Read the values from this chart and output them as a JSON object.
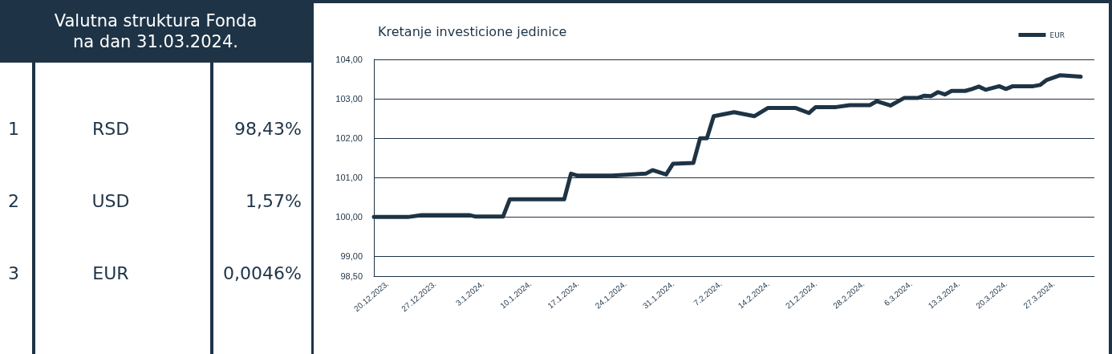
{
  "chart_data": [
    {
      "type": "other",
      "title": "Valutna struktura Fonda na dan 31.03.2024.",
      "categories": [
        "RSD",
        "USD",
        "EUR"
      ],
      "value_labels": [
        "98,43%",
        "1,57%",
        "0,0046%"
      ],
      "annotations": [
        "1",
        "2",
        "3"
      ]
    },
    {
      "type": "line",
      "title": "Kretanje investicione jedinice",
      "legend": "top right",
      "grid": "y",
      "marker": "none",
      "line_style": "solid",
      "x": [
        "2023-12-18",
        "2023-12-23",
        "2023-12-25",
        "2024-01-01",
        "2024-01-02",
        "2024-01-06",
        "2024-01-07",
        "2024-01-15",
        "2024-01-16",
        "2024-01-17",
        "2024-01-22",
        "2024-01-27",
        "2024-01-28",
        "2024-01-30",
        "2024-01-31",
        "2024-02-03",
        "2024-02-04",
        "2024-02-05",
        "2024-02-06",
        "2024-02-09",
        "2024-02-12",
        "2024-02-14",
        "2024-02-18",
        "2024-02-20",
        "2024-02-21",
        "2024-02-24",
        "2024-02-26",
        "2024-02-29",
        "2024-03-01",
        "2024-03-03",
        "2024-03-05",
        "2024-03-07",
        "2024-03-08",
        "2024-03-09",
        "2024-03-10",
        "2024-03-11",
        "2024-03-12",
        "2024-03-14",
        "2024-03-15",
        "2024-03-16",
        "2024-03-17",
        "2024-03-19",
        "2024-03-20",
        "2024-03-21",
        "2024-03-24",
        "2024-03-25",
        "2024-03-26",
        "2024-03-28",
        "2024-03-31"
      ],
      "series": [
        {
          "name": "EUR",
          "color": "#1e3445",
          "values": [
            100.0,
            100.0,
            100.05,
            100.05,
            100.01,
            100.01,
            100.45,
            100.45,
            101.1,
            101.05,
            101.05,
            101.1,
            101.19,
            101.08,
            101.35,
            101.37,
            102.0,
            102.0,
            102.56,
            102.66,
            102.56,
            102.77,
            102.77,
            102.64,
            102.79,
            102.79,
            102.84,
            102.84,
            102.94,
            102.83,
            103.02,
            103.02,
            103.08,
            103.07,
            103.17,
            103.11,
            103.2,
            103.2,
            103.25,
            103.31,
            103.23,
            103.32,
            103.25,
            103.32,
            103.32,
            103.35,
            103.48,
            103.6,
            103.56
          ]
        }
      ],
      "xlim": [
        "2023-12-18",
        "2024-04-02"
      ],
      "xticks": [
        {
          "value": "2023-12-20",
          "label": "20.12.2023."
        },
        {
          "value": "2023-12-27",
          "label": "27.12.2023."
        },
        {
          "value": "2024-01-03",
          "label": "3.1.2024."
        },
        {
          "value": "2024-01-10",
          "label": "10.1.2024."
        },
        {
          "value": "2024-01-17",
          "label": "17.1.2024."
        },
        {
          "value": "2024-01-24",
          "label": "24.1.2024."
        },
        {
          "value": "2024-01-31",
          "label": "31.1.2024."
        },
        {
          "value": "2024-02-07",
          "label": "7.2.2024."
        },
        {
          "value": "2024-02-14",
          "label": "14.2.2024."
        },
        {
          "value": "2024-02-21",
          "label": "21.2.2024."
        },
        {
          "value": "2024-02-28",
          "label": "28.2.2024."
        },
        {
          "value": "2024-03-06",
          "label": "6.3.2024."
        },
        {
          "value": "2024-03-13",
          "label": "13.3.2024."
        },
        {
          "value": "2024-03-20",
          "label": "20.3.2024."
        },
        {
          "value": "2024-03-27",
          "label": "27.3.2024."
        }
      ],
      "ylim": [
        98.5,
        104
      ],
      "yticks": [
        {
          "value": 98.5,
          "label": "98,50"
        },
        {
          "value": 99,
          "label": "99,00"
        },
        {
          "value": 100,
          "label": "100,00"
        },
        {
          "value": 101,
          "label": "101,00"
        },
        {
          "value": 102,
          "label": "102,00"
        },
        {
          "value": 103,
          "label": "103,00"
        },
        {
          "value": 104,
          "label": "104,00"
        }
      ]
    }
  ]
}
